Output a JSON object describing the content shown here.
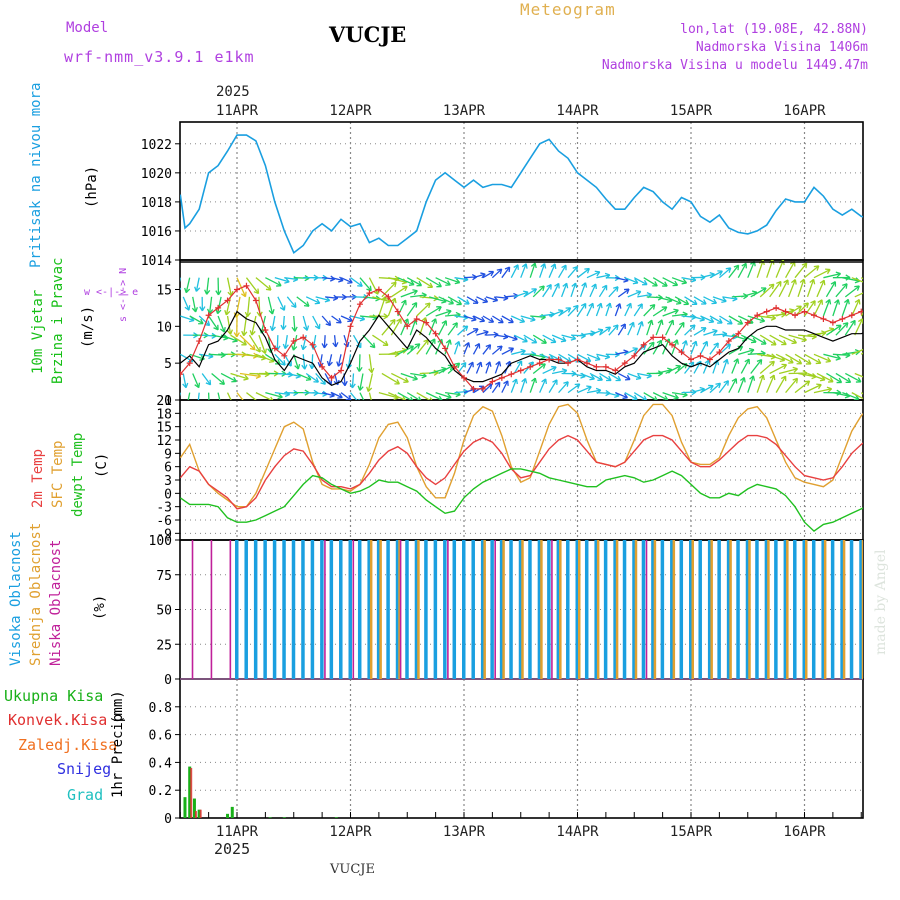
{
  "header": {
    "model_label": "Model",
    "model_name": "wrf-nmm_v3.9.1 e1km",
    "station": "VUCJE",
    "title": "Meteogram",
    "location": "lon,lat (19.08E, 42.88N)",
    "elevation": "Nadmorska Visina 1406m",
    "model_elevation": "Nadmorska Visina u modelu 1449.47m",
    "top_year": "2025",
    "bottom_year": "2025",
    "bottom_station": "VUCJE",
    "credit": "made by Angel"
  },
  "colors": {
    "pressure": "#1a9fe0",
    "wind_label": "#18c018",
    "wind_mean": "#000000",
    "gust": "#e03030",
    "t2m": "#e84040",
    "tsfc": "#e0a030",
    "dewpoint": "#20c020",
    "cloud_high": "#1a9fe0",
    "cloud_mid": "#e0a030",
    "cloud_low": "#c0209a",
    "precip_total": "#18b018",
    "precip_conv": "#e03030",
    "precip_frz": "#f07020",
    "snow": "#3030e0",
    "hail": "#20c0c0",
    "grid": "#888888"
  },
  "days": [
    "11APR",
    "12APR",
    "13APR",
    "14APR",
    "15APR",
    "16APR"
  ],
  "chart_data": [
    {
      "id": "pressure",
      "type": "line",
      "ylabel_main": "Pritisak na nivou mora",
      "ylabel_unit": "(hPa)",
      "ylim": [
        1014,
        1023.5
      ],
      "yticks": [
        1014,
        1016,
        1018,
        1020,
        1022
      ],
      "x_hours": [
        -12,
        -11,
        -10,
        -8,
        -6,
        -4,
        -2,
        0,
        2,
        4,
        6,
        8,
        10,
        12,
        14,
        16,
        18,
        20,
        22,
        24,
        26,
        28,
        30,
        32,
        34,
        36,
        38,
        40,
        42,
        44,
        46,
        48,
        50,
        52,
        54,
        56,
        58,
        60,
        62,
        64,
        66,
        68,
        70,
        72,
        74,
        76,
        78,
        80,
        82,
        84,
        86,
        88,
        90,
        92,
        94,
        96,
        98,
        100,
        102,
        104,
        106,
        108,
        110,
        112,
        114,
        116,
        118,
        120,
        122,
        124,
        126,
        128,
        130,
        132,
        134,
        136,
        138,
        140,
        142
      ],
      "values": [
        1018.5,
        1016.2,
        1016.5,
        1017.5,
        1020.0,
        1020.5,
        1021.5,
        1022.6,
        1022.6,
        1022.2,
        1020.5,
        1018.0,
        1016.0,
        1014.5,
        1015.0,
        1016.0,
        1016.5,
        1016.0,
        1016.8,
        1016.3,
        1016.5,
        1015.2,
        1015.5,
        1015.0,
        1015.0,
        1015.5,
        1016.0,
        1018.0,
        1019.5,
        1020.0,
        1019.5,
        1019.0,
        1019.5,
        1019.0,
        1019.2,
        1019.2,
        1019.0,
        1020.0,
        1021.0,
        1022.0,
        1022.3,
        1021.5,
        1021.0,
        1020.0,
        1019.5,
        1019.0,
        1018.2,
        1017.5,
        1017.5,
        1018.3,
        1019.0,
        1018.7,
        1018.0,
        1017.5,
        1018.3,
        1018.0,
        1017.0,
        1016.6,
        1017.1,
        1016.2,
        1015.9,
        1015.8,
        1016.0,
        1016.4,
        1017.4,
        1018.2,
        1018.0,
        1018.0,
        1019.0,
        1018.4,
        1017.5,
        1017.1,
        1017.5,
        1017.0,
        1016.9,
        1017.0,
        1016.9,
        1016.9,
        1016.9
      ]
    },
    {
      "id": "wind",
      "type": "line",
      "ylabel_main": "10m Vjetar",
      "ylabel_sub": "Brzina i Pravac",
      "ylabel_unit": "(m/s)",
      "compass": "w <-|-> e",
      "compass_vertical": "s <-|-> N",
      "ylim": [
        0,
        19
      ],
      "yticks": [
        0,
        5,
        10,
        15
      ],
      "x_hours": [
        -12,
        -10,
        -8,
        -6,
        -4,
        -2,
        0,
        2,
        4,
        6,
        8,
        10,
        12,
        14,
        16,
        18,
        20,
        22,
        24,
        26,
        28,
        30,
        32,
        34,
        36,
        38,
        40,
        42,
        44,
        46,
        48,
        50,
        52,
        54,
        56,
        58,
        60,
        62,
        64,
        66,
        68,
        70,
        72,
        74,
        76,
        78,
        80,
        82,
        84,
        86,
        88,
        90,
        92,
        94,
        96,
        98,
        100,
        102,
        104,
        106,
        108,
        110,
        112,
        114,
        116,
        118,
        120,
        122,
        124,
        126,
        128,
        130,
        132,
        134,
        136,
        138,
        140,
        142
      ],
      "mean": [
        5.0,
        6.0,
        4.5,
        7.5,
        8.0,
        9.5,
        12.0,
        11.0,
        10.5,
        8.5,
        5.5,
        4.0,
        6.0,
        5.5,
        5.0,
        3.0,
        2.0,
        2.5,
        5.0,
        8.0,
        9.5,
        11.5,
        10.0,
        8.5,
        7.0,
        9.5,
        8.5,
        7.0,
        6.0,
        4.0,
        3.0,
        2.5,
        2.5,
        3.0,
        3.5,
        5.0,
        5.5,
        6.0,
        5.5,
        5.5,
        5.0,
        5.0,
        5.5,
        4.5,
        4.0,
        4.0,
        3.5,
        4.5,
        5.0,
        6.5,
        7.0,
        7.5,
        6.0,
        5.0,
        4.5,
        5.0,
        4.5,
        5.5,
        6.5,
        7.0,
        8.5,
        9.5,
        10.0,
        10.0,
        9.5,
        9.5,
        9.5,
        9.0,
        8.5,
        8.0,
        8.5,
        9.0,
        9.0,
        9.5,
        8.5,
        7.5,
        10.0,
        9.5
      ],
      "gust": [
        3.5,
        5.0,
        8.0,
        11.5,
        12.5,
        13.5,
        15.0,
        15.5,
        13.5,
        9.5,
        7.0,
        6.0,
        8.0,
        8.5,
        7.5,
        4.5,
        3.0,
        4.0,
        10.0,
        13.0,
        14.5,
        15.0,
        14.0,
        12.0,
        10.0,
        11.0,
        10.5,
        9.0,
        7.0,
        4.5,
        3.0,
        1.5,
        1.5,
        2.5,
        3.0,
        3.5,
        4.0,
        4.5,
        5.0,
        5.5,
        5.5,
        5.0,
        5.5,
        5.0,
        4.5,
        4.5,
        4.0,
        5.0,
        6.0,
        7.5,
        8.5,
        8.5,
        7.5,
        6.5,
        5.5,
        6.0,
        5.5,
        6.5,
        8.0,
        9.0,
        10.5,
        11.5,
        12.0,
        12.5,
        12.0,
        11.5,
        12.0,
        11.5,
        11.0,
        10.5,
        11.0,
        11.5,
        12.0,
        12.5,
        11.5,
        10.5,
        13.0,
        13.5
      ]
    },
    {
      "id": "temperature",
      "type": "line",
      "ylabel_main": "2m Temp",
      "ylabel_sub": "SFC Temp",
      "ylabel_sub2": "dewpt Temp",
      "ylabel_unit": "(C)",
      "ylim": [
        -10.5,
        21
      ],
      "yticks": [
        -9,
        -6,
        -3,
        0,
        3,
        6,
        9,
        12,
        15,
        18,
        21
      ],
      "x_hours": [
        -12,
        -10,
        -8,
        -6,
        -4,
        -2,
        0,
        2,
        4,
        6,
        8,
        10,
        12,
        14,
        16,
        18,
        20,
        22,
        24,
        26,
        28,
        30,
        32,
        34,
        36,
        38,
        40,
        42,
        44,
        46,
        48,
        50,
        52,
        54,
        56,
        58,
        60,
        62,
        64,
        66,
        68,
        70,
        72,
        74,
        76,
        78,
        80,
        82,
        84,
        86,
        88,
        90,
        92,
        94,
        96,
        98,
        100,
        102,
        104,
        106,
        108,
        110,
        112,
        114,
        116,
        118,
        120,
        122,
        124,
        126,
        128,
        130,
        132,
        134,
        136,
        138,
        140,
        142
      ],
      "t2m": [
        3.5,
        6.0,
        5.0,
        2.0,
        0.5,
        -1.0,
        -3.5,
        -3.0,
        -1.0,
        3.0,
        6.0,
        8.5,
        10.0,
        9.5,
        6.5,
        3.0,
        1.5,
        1.5,
        1.0,
        2.0,
        4.5,
        7.5,
        9.5,
        10.5,
        9.0,
        6.0,
        3.5,
        2.0,
        3.5,
        6.5,
        9.5,
        11.5,
        12.5,
        11.5,
        9.0,
        5.5,
        3.5,
        4.0,
        7.0,
        10.0,
        12.0,
        13.0,
        12.0,
        9.5,
        7.0,
        6.5,
        6.0,
        7.0,
        9.5,
        12.0,
        13.0,
        13.0,
        12.0,
        9.5,
        7.0,
        6.0,
        6.0,
        7.5,
        9.5,
        11.5,
        13.0,
        13.0,
        12.5,
        11.0,
        8.5,
        6.0,
        4.0,
        3.5,
        3.0,
        3.5,
        6.0,
        9.0,
        11.0,
        12.5,
        13.5,
        14.0,
        14.5,
        14.0
      ],
      "tsfc": [
        8.0,
        11.0,
        5.0,
        2.0,
        0.0,
        -1.5,
        -3.0,
        -3.0,
        0.0,
        5.0,
        10.0,
        15.0,
        16.0,
        14.5,
        7.0,
        2.0,
        1.0,
        1.0,
        0.5,
        2.0,
        6.5,
        12.5,
        15.5,
        16.0,
        12.5,
        6.0,
        1.5,
        -1.0,
        -1.0,
        4.5,
        12.0,
        17.5,
        19.5,
        18.5,
        13.0,
        6.0,
        2.5,
        3.5,
        9.5,
        15.5,
        19.5,
        20.0,
        18.0,
        12.0,
        7.0,
        6.5,
        6.0,
        7.0,
        12.0,
        17.5,
        20.0,
        20.0,
        17.5,
        11.5,
        7.0,
        6.5,
        6.5,
        8.0,
        13.0,
        17.0,
        19.0,
        19.5,
        17.0,
        12.0,
        7.0,
        3.5,
        2.5,
        2.0,
        1.5,
        3.0,
        8.5,
        14.0,
        17.5,
        19.5,
        20.0,
        20.5,
        20.5,
        20.0
      ],
      "dewpt": [
        -1.0,
        -2.5,
        -2.5,
        -2.5,
        -3.0,
        -5.5,
        -6.5,
        -6.5,
        -6.0,
        -5.0,
        -4.0,
        -3.0,
        -0.5,
        2.0,
        4.0,
        3.5,
        2.0,
        1.0,
        0.0,
        0.5,
        1.5,
        3.0,
        2.5,
        2.5,
        1.5,
        0.5,
        -1.5,
        -3.0,
        -4.5,
        -4.0,
        -1.0,
        1.0,
        2.5,
        3.5,
        4.5,
        5.5,
        5.5,
        5.0,
        4.5,
        3.5,
        3.0,
        2.5,
        2.0,
        1.5,
        1.5,
        3.0,
        3.5,
        4.0,
        3.5,
        2.5,
        3.0,
        4.0,
        5.0,
        4.0,
        2.0,
        0.0,
        -1.0,
        -1.0,
        0.0,
        -0.5,
        1.0,
        2.0,
        1.5,
        1.0,
        -0.5,
        -3.0,
        -6.5,
        -8.5,
        -7.0,
        -6.5,
        -5.5,
        -4.5,
        -3.5,
        -2.5,
        -2.0,
        -1.5,
        0.0,
        1.0
      ]
    },
    {
      "id": "clouds",
      "type": "bar",
      "ylabel_main": "Visoka Oblacnost",
      "ylabel_sub": "Srednja Oblacnost",
      "ylabel_sub2": "Niska Oblacnost",
      "ylabel_unit": "(%)",
      "ylim": [
        0,
        100
      ],
      "yticks": [
        0,
        25,
        50,
        75,
        100
      ],
      "high": [
        {
          "x": 0,
          "v": 100
        },
        {
          "x": 2,
          "v": 100
        },
        {
          "x": 4,
          "v": 100
        },
        {
          "x": 6,
          "v": 100
        },
        {
          "x": 8,
          "v": 100
        },
        {
          "x": 10,
          "v": 100
        },
        {
          "x": 12,
          "v": 100
        },
        {
          "x": 14,
          "v": 100
        },
        {
          "x": 16,
          "v": 100
        },
        {
          "x": 18,
          "v": 100
        },
        {
          "x": 20,
          "v": 100
        },
        {
          "x": 22,
          "v": 100
        },
        {
          "x": 24,
          "v": 100
        },
        {
          "x": 26,
          "v": 100
        },
        {
          "x": 28,
          "v": 100
        },
        {
          "x": 30,
          "v": 100
        },
        {
          "x": 32,
          "v": 100
        },
        {
          "x": 34,
          "v": 100
        },
        {
          "x": 36,
          "v": 100
        },
        {
          "x": 38,
          "v": 100
        },
        {
          "x": 40,
          "v": 100
        },
        {
          "x": 42,
          "v": 100
        },
        {
          "x": 44,
          "v": 100
        },
        {
          "x": 46,
          "v": 100
        },
        {
          "x": 48,
          "v": 100
        },
        {
          "x": 50,
          "v": 100
        },
        {
          "x": 52,
          "v": 100
        },
        {
          "x": 54,
          "v": 100
        },
        {
          "x": 56,
          "v": 100
        },
        {
          "x": 58,
          "v": 100
        },
        {
          "x": 60,
          "v": 100
        },
        {
          "x": 62,
          "v": 100
        },
        {
          "x": 64,
          "v": 100
        },
        {
          "x": 66,
          "v": 100
        },
        {
          "x": 68,
          "v": 100
        },
        {
          "x": 70,
          "v": 100
        },
        {
          "x": 72,
          "v": 100
        },
        {
          "x": 74,
          "v": 100
        },
        {
          "x": 76,
          "v": 100
        },
        {
          "x": 78,
          "v": 100
        },
        {
          "x": 80,
          "v": 100
        },
        {
          "x": 82,
          "v": 100
        },
        {
          "x": 84,
          "v": 100
        },
        {
          "x": 86,
          "v": 100
        },
        {
          "x": 88,
          "v": 100
        },
        {
          "x": 90,
          "v": 100
        },
        {
          "x": 92,
          "v": 100
        },
        {
          "x": 94,
          "v": 100
        },
        {
          "x": 96,
          "v": 100
        },
        {
          "x": 98,
          "v": 100
        },
        {
          "x": 100,
          "v": 100
        },
        {
          "x": 102,
          "v": 100
        },
        {
          "x": 104,
          "v": 100
        },
        {
          "x": 106,
          "v": 100
        },
        {
          "x": 108,
          "v": 100
        },
        {
          "x": 110,
          "v": 100
        },
        {
          "x": 112,
          "v": 100
        },
        {
          "x": 114,
          "v": 100
        },
        {
          "x": 116,
          "v": 100
        },
        {
          "x": 118,
          "v": 100
        },
        {
          "x": 120,
          "v": 100
        },
        {
          "x": 122,
          "v": 100
        },
        {
          "x": 124,
          "v": 100
        },
        {
          "x": 126,
          "v": 100
        },
        {
          "x": 128,
          "v": 100
        },
        {
          "x": 130,
          "v": 100
        },
        {
          "x": 132,
          "v": 100
        },
        {
          "x": 134,
          "v": 100
        },
        {
          "x": 136,
          "v": 100
        },
        {
          "x": 138,
          "v": 100
        },
        {
          "x": 140,
          "v": 100
        },
        {
          "x": 142,
          "v": 100
        }
      ],
      "mid": [
        {
          "x": 28,
          "v": 100
        },
        {
          "x": 30,
          "v": 100
        },
        {
          "x": 34,
          "v": 100
        },
        {
          "x": 38,
          "v": 100
        },
        {
          "x": 52,
          "v": 100
        },
        {
          "x": 56,
          "v": 100
        },
        {
          "x": 60,
          "v": 100
        },
        {
          "x": 64,
          "v": 100
        },
        {
          "x": 68,
          "v": 100
        },
        {
          "x": 72,
          "v": 100
        },
        {
          "x": 76,
          "v": 100
        },
        {
          "x": 80,
          "v": 100
        },
        {
          "x": 84,
          "v": 100
        },
        {
          "x": 88,
          "v": 100
        },
        {
          "x": 92,
          "v": 100
        },
        {
          "x": 96,
          "v": 100
        },
        {
          "x": 100,
          "v": 100
        },
        {
          "x": 104,
          "v": 100
        },
        {
          "x": 108,
          "v": 100
        },
        {
          "x": 112,
          "v": 100
        },
        {
          "x": 116,
          "v": 100
        },
        {
          "x": 120,
          "v": 100
        },
        {
          "x": 124,
          "v": 100
        },
        {
          "x": 128,
          "v": 100
        },
        {
          "x": 132,
          "v": 100
        },
        {
          "x": 136,
          "v": 100
        },
        {
          "x": 140,
          "v": 100
        }
      ],
      "low": [
        {
          "x": -10,
          "v": 100
        },
        {
          "x": -6,
          "v": 100
        },
        {
          "x": -2,
          "v": 100
        },
        {
          "x": 18,
          "v": 100
        },
        {
          "x": 24,
          "v": 100
        },
        {
          "x": 34,
          "v": 100
        },
        {
          "x": 44,
          "v": 100
        },
        {
          "x": 54,
          "v": 100
        },
        {
          "x": 66,
          "v": 100
        },
        {
          "x": 86,
          "v": 100
        }
      ]
    },
    {
      "id": "precip",
      "type": "bar",
      "ylabel_main": "1hr Precip",
      "ylabel_unit": "(mm)",
      "legend": [
        "Ukupna Kisa",
        "Konvek.Kisa",
        "Zaledj.Kisa",
        "Snijeg",
        "Grad"
      ],
      "ylim": [
        0,
        1.0
      ],
      "yticks": [
        0,
        0.2,
        0.4,
        0.6,
        0.8
      ],
      "total": [
        {
          "x": -11,
          "v": 0.15
        },
        {
          "x": -10,
          "v": 0.37
        },
        {
          "x": -9,
          "v": 0.14
        },
        {
          "x": -8,
          "v": 0.06
        },
        {
          "x": -2,
          "v": 0.03
        },
        {
          "x": -1,
          "v": 0.08
        },
        {
          "x": 7,
          "v": 0.005
        },
        {
          "x": 10,
          "v": 0.005
        },
        {
          "x": 21,
          "v": 0.005
        }
      ],
      "conv": [
        {
          "x": -10,
          "v": 0.36
        },
        {
          "x": -9,
          "v": 0.05
        },
        {
          "x": -8,
          "v": 0.06
        }
      ]
    }
  ]
}
